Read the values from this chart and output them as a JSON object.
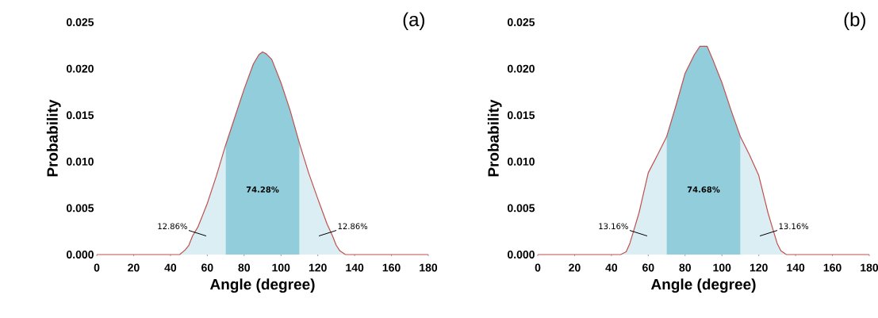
{
  "chart_data": [
    {
      "type": "area",
      "title": "(a)",
      "xlabel": "Angle (degree)",
      "ylabel": "Probability",
      "x": [
        0,
        45,
        48,
        50,
        52,
        55,
        60,
        65,
        70,
        75,
        80,
        85,
        88,
        90,
        92,
        95,
        100,
        105,
        110,
        115,
        120,
        125,
        128,
        130,
        132,
        135,
        180
      ],
      "series": [
        {
          "color": "#dbeef4",
          "x": [
            45,
            48,
            50,
            52,
            55,
            60,
            65,
            70
          ],
          "values": [
            0,
            0.0005,
            0.001,
            0.002,
            0.003,
            0.0055,
            0.0085,
            0.0118
          ]
        },
        {
          "color": "#dbeef4",
          "x": [
            110,
            115,
            120,
            125,
            128,
            130,
            132,
            135
          ],
          "values": [
            0.012,
            0.0088,
            0.006,
            0.0033,
            0.002,
            0.001,
            0.0004,
            0
          ]
        },
        {
          "color": "#92cddc",
          "x": [
            70,
            75,
            80,
            85,
            88,
            90,
            92,
            95,
            100,
            105,
            110
          ],
          "values": [
            0.0118,
            0.0148,
            0.0178,
            0.0205,
            0.0215,
            0.0218,
            0.0216,
            0.021,
            0.0185,
            0.0155,
            0.012
          ]
        },
        {
          "type": "line",
          "color": "#c0504d",
          "values": [
            0,
            0,
            0.0005,
            0.001,
            0.002,
            0.003,
            0.0055,
            0.0085,
            0.0118,
            0.0148,
            0.0178,
            0.0205,
            0.0215,
            0.0218,
            0.0216,
            0.021,
            0.0185,
            0.0155,
            0.012,
            0.0088,
            0.006,
            0.0033,
            0.002,
            0.001,
            0.0004,
            0,
            0
          ]
        }
      ],
      "annotations": [
        "74.28%",
        "12.86%",
        "12.86%"
      ],
      "xlim": [
        0,
        180
      ],
      "ylim": [
        0,
        0.025
      ],
      "xticks": [
        0,
        20,
        40,
        60,
        80,
        100,
        120,
        140,
        160,
        180
      ],
      "yticks": [
        {
          "value": 0,
          "label": "0.000"
        },
        {
          "value": 0.005,
          "label": "0.005"
        },
        {
          "value": 0.01,
          "label": "0.010"
        },
        {
          "value": 0.015,
          "label": "0.015"
        },
        {
          "value": 0.02,
          "label": "0.020"
        },
        {
          "value": 0.025,
          "label": "0.025"
        }
      ]
    },
    {
      "type": "area",
      "title": "(b)",
      "xlabel": "Angle (degree)",
      "ylabel": "Probability",
      "x": [
        0,
        45,
        48,
        50,
        52,
        55,
        60,
        65,
        70,
        75,
        80,
        85,
        88,
        90,
        92,
        95,
        100,
        105,
        110,
        115,
        120,
        125,
        128,
        130,
        132,
        135,
        180
      ],
      "series": [
        {
          "color": "#dbeef4",
          "x": [
            45,
            48,
            50,
            52,
            55,
            60,
            65,
            70
          ],
          "values": [
            0,
            0.0003,
            0.0012,
            0.0025,
            0.0045,
            0.0088,
            0.0107,
            0.0127
          ]
        },
        {
          "color": "#dbeef4",
          "x": [
            110,
            115,
            120,
            125,
            128,
            130,
            132,
            135
          ],
          "values": [
            0.0127,
            0.0107,
            0.0085,
            0.0045,
            0.0025,
            0.0012,
            0.0004,
            0
          ]
        },
        {
          "color": "#92cddc",
          "x": [
            70,
            75,
            80,
            85,
            88,
            90,
            92,
            95,
            100,
            105,
            110
          ],
          "values": [
            0.0127,
            0.016,
            0.0195,
            0.0215,
            0.0224,
            0.0224,
            0.0224,
            0.021,
            0.0185,
            0.0155,
            0.0127
          ]
        },
        {
          "type": "line",
          "color": "#c0504d",
          "values": [
            0,
            0,
            0.0003,
            0.0012,
            0.0025,
            0.0045,
            0.0088,
            0.0107,
            0.0127,
            0.016,
            0.0195,
            0.0215,
            0.0224,
            0.0224,
            0.0224,
            0.021,
            0.0185,
            0.0155,
            0.0127,
            0.0107,
            0.0085,
            0.0045,
            0.0025,
            0.0012,
            0.0004,
            0,
            0
          ]
        }
      ],
      "annotations": [
        "74.68%",
        "13.16%",
        "13.16%"
      ],
      "xlim": [
        0,
        180
      ],
      "ylim": [
        0,
        0.025
      ],
      "xticks": [
        0,
        20,
        40,
        60,
        80,
        100,
        120,
        140,
        160,
        180
      ],
      "yticks": [
        {
          "value": 0,
          "label": "0.000"
        },
        {
          "value": 0.005,
          "label": "0.005"
        },
        {
          "value": 0.01,
          "label": "0.010"
        },
        {
          "value": 0.015,
          "label": "0.015"
        },
        {
          "value": 0.02,
          "label": "0.020"
        },
        {
          "value": 0.025,
          "label": "0.025"
        }
      ]
    }
  ]
}
